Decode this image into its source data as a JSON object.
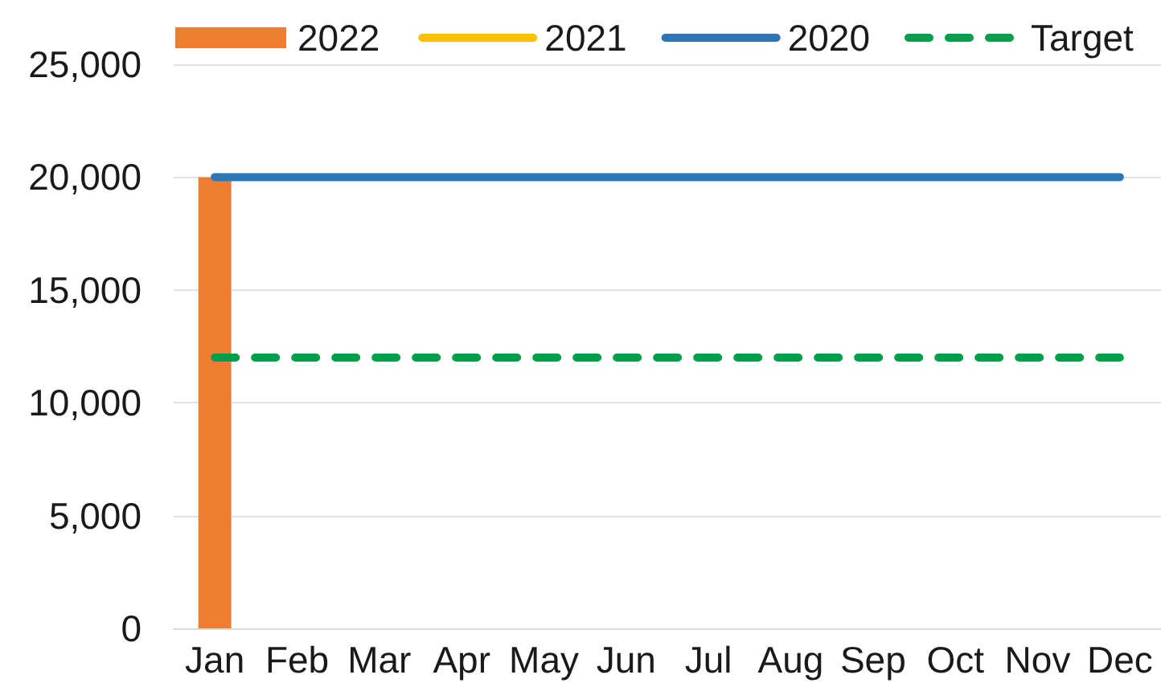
{
  "chart_data": {
    "type": "bar",
    "categories": [
      "Jan",
      "Feb",
      "Mar",
      "Apr",
      "May",
      "Jun",
      "Jul",
      "Aug",
      "Sep",
      "Oct",
      "Nov",
      "Dec"
    ],
    "series": [
      {
        "name": "2022",
        "color": "#ed7d31",
        "values": [
          20000,
          null,
          null,
          null,
          null,
          null,
          null,
          null,
          null,
          null,
          null,
          null
        ]
      },
      {
        "name": "2021",
        "type": "line",
        "color": "#ffc000",
        "values": [
          null,
          null,
          null,
          null,
          null,
          null,
          null,
          null,
          null,
          null,
          null,
          null
        ]
      },
      {
        "name": "2020",
        "type": "line",
        "color": "#2e75b6",
        "values": [
          20000,
          20000,
          20000,
          20000,
          20000,
          20000,
          20000,
          20000,
          20000,
          20000,
          20000,
          20000
        ]
      },
      {
        "name": "Target",
        "type": "line",
        "color": "#00a04a",
        "line_style": "dashed",
        "values": [
          12000,
          12000,
          12000,
          12000,
          12000,
          12000,
          12000,
          12000,
          12000,
          12000,
          12000,
          12000
        ]
      }
    ],
    "ylim": [
      0,
      25000
    ],
    "yticks": [
      0,
      {
        "value": 5000,
        "label": "5,000"
      },
      {
        "value": 10000,
        "label": "10,000"
      },
      {
        "value": 15000,
        "label": "15,000"
      },
      {
        "value": 20000,
        "label": "20,000"
      },
      {
        "value": 25000,
        "label": "25,000"
      }
    ],
    "grid": "y",
    "legend": "top",
    "marker": "none"
  }
}
